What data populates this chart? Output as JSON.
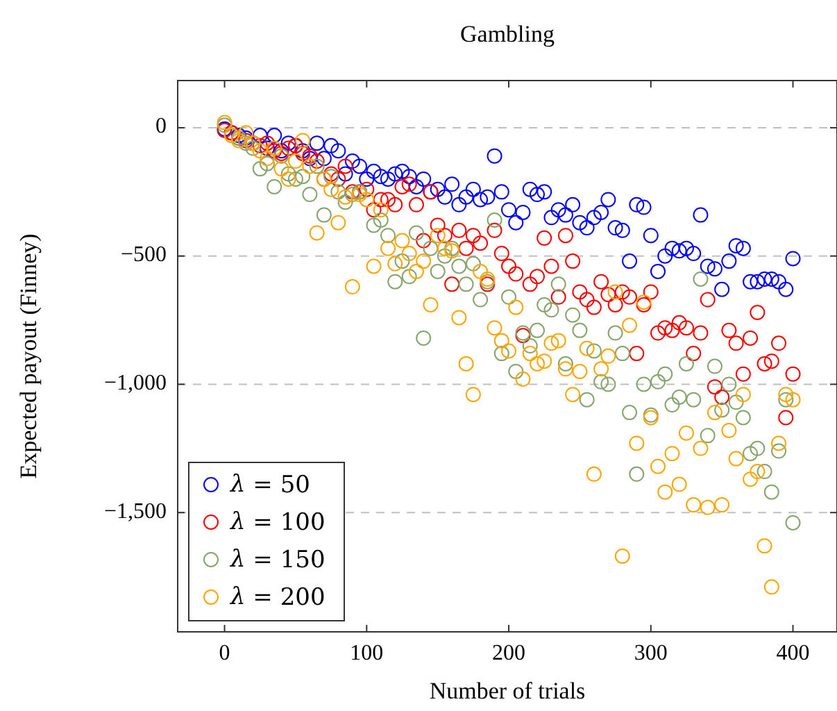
{
  "chart_data": {
    "type": "scatter",
    "title": "Gambling",
    "xlabel": "Number of trials",
    "ylabel": "Expected payout (Finney)",
    "x": [
      0,
      5,
      10,
      15,
      20,
      25,
      30,
      35,
      40,
      45,
      50,
      55,
      60,
      65,
      70,
      75,
      80,
      85,
      90,
      95,
      100,
      105,
      110,
      115,
      120,
      125,
      130,
      135,
      140,
      145,
      150,
      155,
      160,
      165,
      170,
      175,
      180,
      185,
      190,
      195,
      200,
      205,
      210,
      215,
      220,
      225,
      230,
      235,
      240,
      245,
      250,
      255,
      260,
      265,
      270,
      275,
      280,
      285,
      290,
      295,
      300,
      305,
      310,
      315,
      320,
      325,
      330,
      335,
      340,
      345,
      350,
      355,
      360,
      365,
      370,
      375,
      380,
      385,
      390,
      395,
      400
    ],
    "series": [
      {
        "name": "λ = 50",
        "color": "#0000ff",
        "values": [
          -5,
          -20,
          -30,
          -40,
          -60,
          -30,
          -80,
          -30,
          -90,
          -60,
          -70,
          -90,
          -120,
          -60,
          -120,
          -70,
          -90,
          -180,
          -130,
          -150,
          -200,
          -170,
          -190,
          -200,
          -180,
          -170,
          -190,
          -230,
          -200,
          -250,
          -240,
          -270,
          -220,
          -300,
          -270,
          -240,
          -280,
          -270,
          -110,
          -250,
          -320,
          -370,
          -330,
          -240,
          -260,
          -250,
          -350,
          -320,
          -340,
          -300,
          -370,
          -390,
          -350,
          -330,
          -280,
          -390,
          -400,
          -520,
          -300,
          -310,
          -420,
          -560,
          -500,
          -470,
          -480,
          -470,
          -490,
          -340,
          -540,
          -550,
          -630,
          -520,
          -460,
          -470,
          -600,
          -600,
          -590,
          -590,
          -600,
          -630,
          -510
        ]
      },
      {
        "name": "λ = 100",
        "color": "#ff0000",
        "values": [
          -10,
          -20,
          -40,
          -50,
          -60,
          -70,
          -60,
          -90,
          -100,
          -80,
          -70,
          -100,
          -110,
          -130,
          -200,
          -180,
          -200,
          -150,
          -250,
          -250,
          -240,
          -320,
          -280,
          -280,
          -300,
          -230,
          -220,
          -300,
          -440,
          -250,
          -380,
          -420,
          -610,
          -400,
          -470,
          -420,
          -450,
          -610,
          -400,
          -490,
          -540,
          -570,
          -810,
          -610,
          -580,
          -430,
          -540,
          -660,
          -420,
          -520,
          -640,
          -670,
          -700,
          -600,
          -650,
          -690,
          -640,
          -660,
          -880,
          -690,
          -640,
          -800,
          -780,
          -790,
          -760,
          -780,
          -880,
          -800,
          -670,
          -1010,
          -1050,
          -790,
          -840,
          -960,
          -820,
          -720,
          -920,
          -910,
          -840,
          -1130,
          -960
        ]
      },
      {
        "name": "λ = 150",
        "color": "#85a56b",
        "values": [
          10,
          -30,
          -40,
          -60,
          -80,
          -160,
          -140,
          -230,
          -110,
          -180,
          -200,
          -190,
          -260,
          -150,
          -340,
          -190,
          -250,
          -290,
          -260,
          -250,
          -280,
          -380,
          -360,
          -420,
          -600,
          -520,
          -580,
          -410,
          -820,
          -470,
          -560,
          -500,
          -470,
          -540,
          -610,
          -530,
          -670,
          -600,
          -360,
          -880,
          -660,
          -950,
          -800,
          -850,
          -790,
          -690,
          -710,
          -610,
          -920,
          -730,
          -790,
          -1060,
          -870,
          -990,
          -1000,
          -800,
          -880,
          -1110,
          -1350,
          -1000,
          -1120,
          -990,
          -960,
          -1080,
          -1050,
          -920,
          -1060,
          -590,
          -1200,
          -930,
          -1100,
          -1000,
          -1070,
          -1130,
          -1270,
          -1250,
          -1340,
          -1420,
          -1260,
          -1060,
          -1540
        ]
      },
      {
        "name": "λ = 200",
        "color": "#ffa500",
        "values": [
          20,
          -30,
          -50,
          -20,
          -60,
          -90,
          -120,
          -80,
          -160,
          -200,
          -130,
          -50,
          -150,
          -410,
          -200,
          -240,
          -370,
          -270,
          -620,
          -260,
          -280,
          -540,
          -320,
          -470,
          -530,
          -440,
          -490,
          -560,
          -520,
          -690,
          -420,
          -470,
          -480,
          -740,
          -920,
          -1040,
          -560,
          -590,
          -780,
          -830,
          -870,
          -700,
          -980,
          -880,
          -920,
          -910,
          -840,
          -830,
          -940,
          -1040,
          -950,
          -860,
          -1350,
          -940,
          -890,
          -640,
          -1670,
          -770,
          -1230,
          -680,
          -1130,
          -1320,
          -1420,
          -1270,
          -1390,
          -1190,
          -1470,
          -1250,
          -1480,
          -1110,
          -1470,
          -1180,
          -1290,
          -1040,
          -1370,
          -1340,
          -1630,
          -1790,
          -1230,
          -1040,
          -1060
        ]
      }
    ],
    "xlim": [
      -33,
      431
    ],
    "ylim": [
      -1965,
      184
    ],
    "xticks": [
      0,
      100,
      200,
      300,
      400
    ],
    "yticks": [
      0,
      {
        "value": -500,
        "label": "−500"
      },
      {
        "value": -1000,
        "label": "−1,000"
      },
      {
        "value": -1500,
        "label": "−1,500"
      }
    ],
    "grid": "y",
    "legend": "bottom left",
    "marker": "circle"
  }
}
